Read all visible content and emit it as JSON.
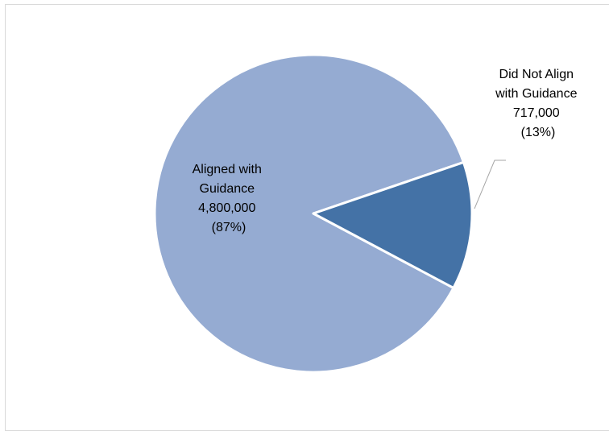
{
  "chart_data": {
    "type": "pie",
    "title": "",
    "slices": [
      {
        "label_lines": [
          "Aligned with",
          "Guidance"
        ],
        "value": 4800000,
        "value_text": "4,800,000",
        "percent_text": "(87%)",
        "color": "#95abd2"
      },
      {
        "label_lines": [
          "Did Not Align",
          "with Guidance"
        ],
        "value": 717000,
        "value_text": "717,000",
        "percent_text": "(13%)",
        "color": "#4472a6"
      }
    ],
    "legend": "none",
    "slice_border_color": "#ffffff",
    "leader_line_color": "#a6a6a6"
  }
}
